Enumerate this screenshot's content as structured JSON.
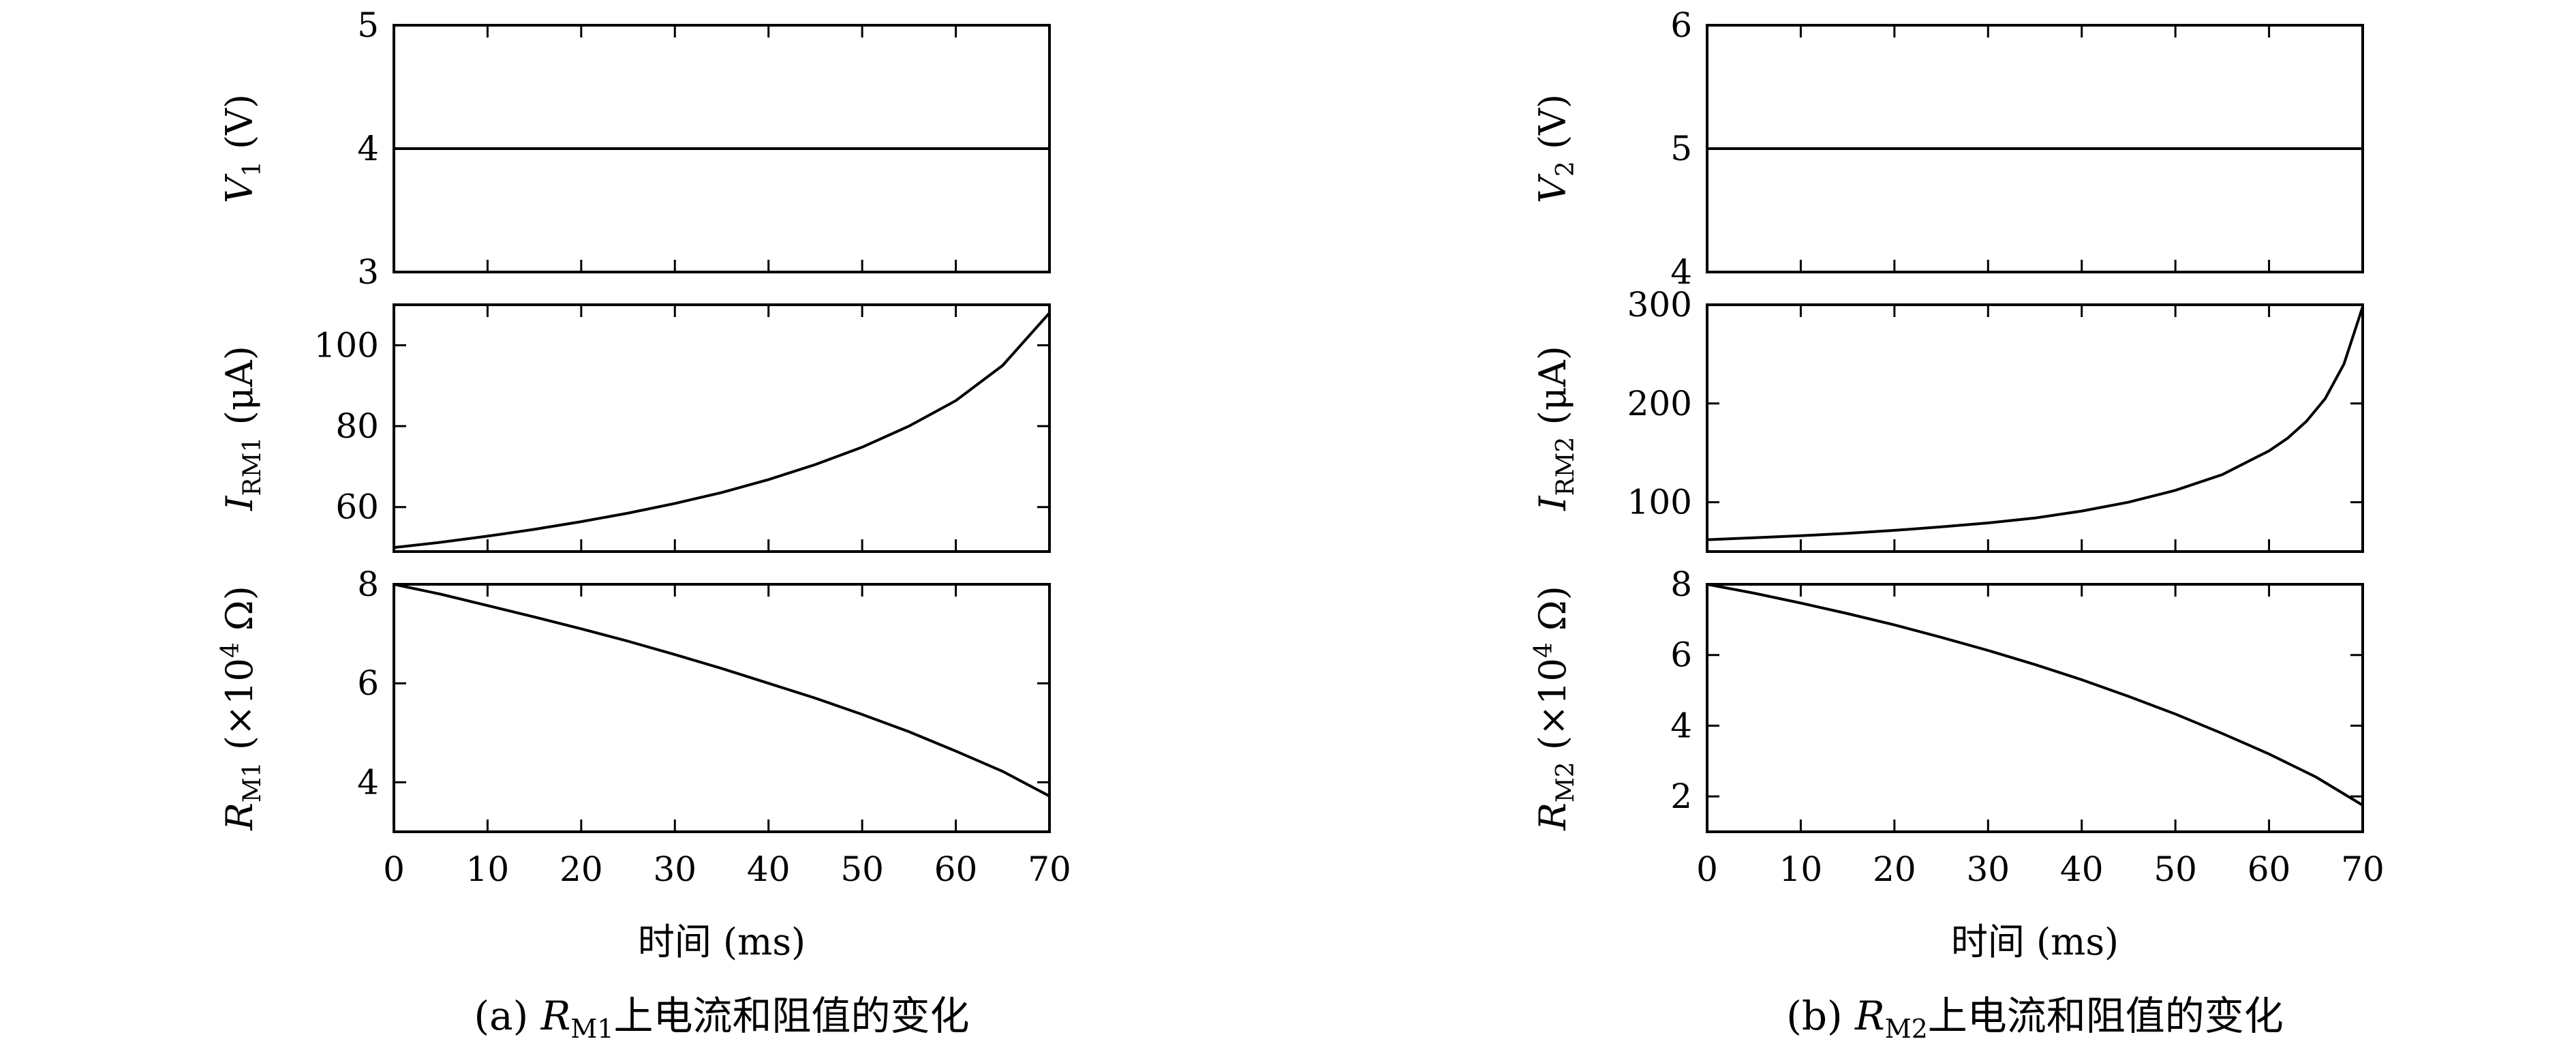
{
  "chart_data": [
    {
      "type": "line",
      "panel": "a",
      "caption": {
        "prefix": "(a) ",
        "var": "R",
        "sub": "M1",
        "suffix": "上电流和阻值的变化"
      },
      "xlabel": "时间 (ms)",
      "x_ticks": [
        0,
        10,
        20,
        30,
        40,
        50,
        60,
        70
      ],
      "xlim": [
        0,
        70
      ],
      "subplots": [
        {
          "id": "v",
          "ylabel": {
            "var": "V",
            "sub": "1",
            "unit": " (V)"
          },
          "ylim": [
            3,
            5
          ],
          "y_ticks": [
            3,
            4,
            5
          ],
          "series": [
            {
              "x": [
                0,
                70
              ],
              "y": [
                4,
                4
              ]
            }
          ]
        },
        {
          "id": "i",
          "ylabel": {
            "var": "I",
            "sub": "RM1",
            "unit": " (μA)"
          },
          "ylim": [
            49,
            110
          ],
          "y_ticks": [
            60,
            80,
            100
          ],
          "series": [
            {
              "x": [
                0,
                5,
                10,
                15,
                20,
                25,
                30,
                35,
                40,
                45,
                50,
                55,
                60,
                65,
                70
              ],
              "y": [
                50.0,
                51.3,
                52.8,
                54.5,
                56.4,
                58.5,
                60.9,
                63.6,
                66.8,
                70.5,
                74.8,
                80.0,
                86.3,
                95.0,
                108.0
              ]
            }
          ]
        },
        {
          "id": "r",
          "ylabel": {
            "var": "R",
            "sub": "M1",
            "unit": " (×10",
            "sup": "4",
            "unit2": " Ω)"
          },
          "ylim": [
            3,
            8
          ],
          "y_ticks": [
            4,
            6,
            8
          ],
          "series": [
            {
              "x": [
                0,
                5,
                10,
                15,
                20,
                25,
                30,
                35,
                40,
                45,
                50,
                55,
                60,
                65,
                70
              ],
              "y": [
                8.0,
                7.8,
                7.57,
                7.34,
                7.1,
                6.85,
                6.58,
                6.3,
                6.0,
                5.7,
                5.37,
                5.02,
                4.63,
                4.22,
                3.72
              ]
            }
          ]
        }
      ]
    },
    {
      "type": "line",
      "panel": "b",
      "caption": {
        "prefix": "(b) ",
        "var": "R",
        "sub": "M2",
        "suffix": "上电流和阻值的变化"
      },
      "xlabel": "时间 (ms)",
      "x_ticks": [
        0,
        10,
        20,
        30,
        40,
        50,
        60,
        70
      ],
      "xlim": [
        0,
        70
      ],
      "subplots": [
        {
          "id": "v",
          "ylabel": {
            "var": "V",
            "sub": "2",
            "unit": " (V)"
          },
          "ylim": [
            4,
            6
          ],
          "y_ticks": [
            4,
            5,
            6
          ],
          "series": [
            {
              "x": [
                0,
                70
              ],
              "y": [
                5,
                5
              ]
            }
          ]
        },
        {
          "id": "i",
          "ylabel": {
            "var": "I",
            "sub": "RM2",
            "unit": " (μA)"
          },
          "ylim": [
            50,
            300
          ],
          "y_ticks": [
            100,
            200,
            300
          ],
          "series": [
            {
              "x": [
                0,
                5,
                10,
                15,
                20,
                25,
                30,
                35,
                40,
                45,
                50,
                55,
                60,
                62,
                64,
                66,
                68,
                70
              ],
              "y": [
                62,
                64,
                66,
                68.5,
                71.5,
                75,
                79,
                84,
                91,
                100,
                112,
                128,
                152,
                165,
                182,
                205,
                240,
                298
              ]
            }
          ]
        },
        {
          "id": "r",
          "ylabel": {
            "var": "R",
            "sub": "M2",
            "unit": " (×10",
            "sup": "4",
            "unit2": " Ω)"
          },
          "ylim": [
            1,
            8
          ],
          "y_ticks": [
            2,
            4,
            6,
            8
          ],
          "series": [
            {
              "x": [
                0,
                5,
                10,
                15,
                20,
                25,
                30,
                35,
                40,
                45,
                50,
                55,
                60,
                65,
                70
              ],
              "y": [
                8.0,
                7.75,
                7.47,
                7.17,
                6.85,
                6.5,
                6.13,
                5.73,
                5.3,
                4.83,
                4.33,
                3.78,
                3.2,
                2.55,
                1.75
              ]
            }
          ]
        }
      ]
    }
  ]
}
